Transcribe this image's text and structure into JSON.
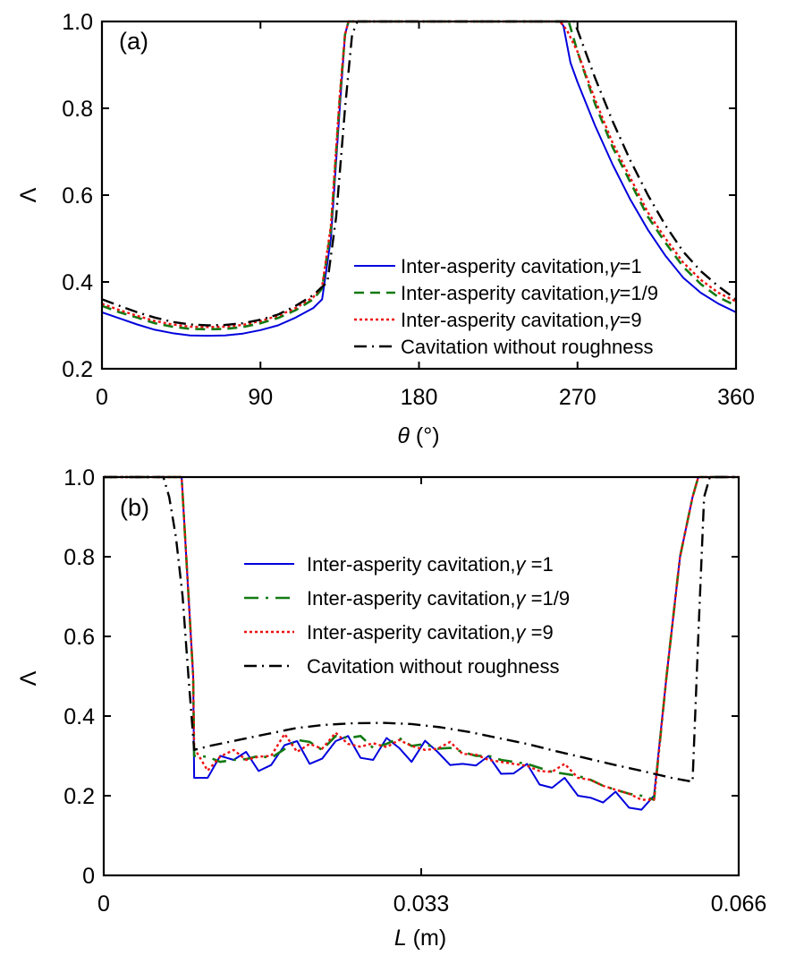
{
  "chart_data": [
    {
      "type": "line",
      "panel_label": "(a)",
      "xlabel_symbol": "θ",
      "xlabel_unit": " (°)",
      "ylabel": "Λ",
      "xlim": [
        0,
        360
      ],
      "ylim": [
        0.2,
        1.0
      ],
      "xticks": [
        0,
        90,
        180,
        270,
        360
      ],
      "xtick_labels": [
        "0",
        "90",
        "180",
        "270",
        "360"
      ],
      "yticks": [
        0.2,
        0.4,
        0.6,
        0.8,
        1.0
      ],
      "ytick_labels": [
        "0.2",
        "0.4",
        "0.6",
        "0.8",
        "1.0"
      ],
      "grid": false,
      "legend_position": "lower-right",
      "series": [
        {
          "name": "Inter-asperity cavitation, γ=1",
          "legend_prefix": "Inter-asperity cavitation,",
          "legend_gamma": "γ",
          "legend_suffix": "=1",
          "color": "#0000dd",
          "style": "solid",
          "x": [
            0,
            10,
            20,
            30,
            40,
            50,
            60,
            70,
            80,
            90,
            100,
            110,
            120,
            125,
            130,
            135,
            138,
            140,
            150,
            180,
            220,
            260,
            262,
            266,
            270,
            280,
            290,
            300,
            310,
            320,
            330,
            340,
            350,
            360
          ],
          "y": [
            0.33,
            0.316,
            0.302,
            0.29,
            0.282,
            0.277,
            0.276,
            0.277,
            0.281,
            0.289,
            0.3,
            0.318,
            0.34,
            0.36,
            0.5,
            0.8,
            0.97,
            1.0,
            1.0,
            1.0,
            1.0,
            1.0,
            0.99,
            0.905,
            0.86,
            0.76,
            0.67,
            0.59,
            0.52,
            0.46,
            0.41,
            0.375,
            0.35,
            0.33
          ]
        },
        {
          "name": "Inter-asperity cavitation, γ=1/9",
          "legend_prefix": "Inter-asperity cavitation,",
          "legend_gamma": "γ",
          "legend_suffix": "=1/9",
          "color": "#137a13",
          "style": "dashed",
          "x": [
            0,
            10,
            20,
            30,
            40,
            50,
            60,
            70,
            80,
            90,
            100,
            110,
            120,
            125,
            130,
            135,
            138,
            140,
            150,
            180,
            220,
            260,
            265,
            270,
            280,
            290,
            300,
            310,
            320,
            330,
            340,
            350,
            360
          ],
          "y": [
            0.345,
            0.33,
            0.318,
            0.305,
            0.297,
            0.292,
            0.291,
            0.292,
            0.296,
            0.305,
            0.317,
            0.335,
            0.36,
            0.385,
            0.52,
            0.82,
            0.97,
            1.0,
            1.0,
            1.0,
            1.0,
            1.0,
            1.0,
            0.93,
            0.81,
            0.71,
            0.63,
            0.55,
            0.49,
            0.435,
            0.395,
            0.365,
            0.345
          ]
        },
        {
          "name": "Inter-asperity cavitation, γ=9",
          "legend_prefix": "Inter-asperity cavitation,",
          "legend_gamma": "γ",
          "legend_suffix": "=9",
          "color": "#ee1111",
          "style": "dotted",
          "x": [
            0,
            10,
            20,
            30,
            40,
            50,
            60,
            70,
            80,
            90,
            100,
            110,
            120,
            125,
            130,
            135,
            138,
            140,
            150,
            180,
            220,
            260,
            264,
            270,
            280,
            290,
            300,
            310,
            320,
            330,
            340,
            350,
            360
          ],
          "y": [
            0.35,
            0.335,
            0.322,
            0.31,
            0.302,
            0.297,
            0.296,
            0.297,
            0.301,
            0.31,
            0.322,
            0.34,
            0.365,
            0.39,
            0.53,
            0.83,
            0.97,
            1.0,
            1.0,
            1.0,
            1.0,
            1.0,
            0.98,
            0.93,
            0.82,
            0.72,
            0.64,
            0.56,
            0.5,
            0.445,
            0.405,
            0.375,
            0.355
          ]
        },
        {
          "name": "Cavitation without roughness",
          "legend_prefix": "Cavitation without roughness",
          "legend_gamma": "",
          "legend_suffix": "",
          "color": "#000000",
          "style": "dashdot",
          "x": [
            0,
            10,
            20,
            30,
            40,
            50,
            60,
            70,
            80,
            90,
            100,
            110,
            120,
            128,
            133,
            138,
            142,
            145,
            150,
            180,
            220,
            260,
            268,
            270,
            280,
            290,
            300,
            310,
            320,
            330,
            340,
            350,
            360
          ],
          "y": [
            0.36,
            0.345,
            0.33,
            0.318,
            0.308,
            0.302,
            0.3,
            0.301,
            0.305,
            0.313,
            0.325,
            0.345,
            0.37,
            0.4,
            0.55,
            0.8,
            0.97,
            1.0,
            1.0,
            1.0,
            1.0,
            1.0,
            1.0,
            0.98,
            0.87,
            0.77,
            0.68,
            0.6,
            0.53,
            0.47,
            0.425,
            0.39,
            0.36
          ]
        }
      ]
    },
    {
      "type": "line",
      "panel_label": "(b)",
      "xlabel_symbol": "L",
      "xlabel_unit": " (m)",
      "ylabel": "Λ",
      "xlim": [
        0,
        0.066
      ],
      "ylim": [
        0,
        1.0
      ],
      "xticks": [
        0,
        0.033,
        0.066
      ],
      "xtick_labels": [
        "0",
        "0.033",
        "0.066"
      ],
      "yticks": [
        0,
        0.2,
        0.4,
        0.6,
        0.8,
        1.0
      ],
      "ytick_labels": [
        "0",
        "0.2",
        "0.4",
        "0.6",
        "0.8",
        "1.0"
      ],
      "grid": false,
      "legend_position": "upper-center",
      "series": [
        {
          "name": "Inter-asperity cavitation, γ=1",
          "legend_prefix": "Inter-asperity cavitation,",
          "legend_gamma": "γ",
          "legend_suffix": " =1",
          "color": "#0000dd",
          "style": "solid",
          "x": [
            0,
            0.0081,
            0.0093,
            0.0094,
            0.0108,
            0.0121,
            0.0135,
            0.0148,
            0.0161,
            0.0174,
            0.0188,
            0.0201,
            0.0214,
            0.0227,
            0.0241,
            0.0254,
            0.0267,
            0.028,
            0.0294,
            0.0307,
            0.032,
            0.0334,
            0.0347,
            0.036,
            0.0373,
            0.0387,
            0.04,
            0.0413,
            0.0426,
            0.044,
            0.0453,
            0.0466,
            0.0479,
            0.0493,
            0.0506,
            0.0519,
            0.0532,
            0.0546,
            0.0559,
            0.0572,
            0.0585,
            0.0599,
            0.0612,
            0.0618,
            0.0624,
            0.063,
            0.066
          ],
          "y": [
            1.0,
            1.0,
            0.5,
            0.245,
            0.245,
            0.3,
            0.29,
            0.31,
            0.262,
            0.277,
            0.327,
            0.337,
            0.28,
            0.293,
            0.337,
            0.35,
            0.295,
            0.29,
            0.345,
            0.32,
            0.285,
            0.338,
            0.31,
            0.277,
            0.28,
            0.276,
            0.3,
            0.255,
            0.256,
            0.28,
            0.228,
            0.22,
            0.245,
            0.2,
            0.195,
            0.183,
            0.21,
            0.17,
            0.165,
            0.2,
            0.5,
            0.8,
            0.95,
            1.0,
            1.0,
            1.0,
            1.0
          ]
        },
        {
          "name": "Inter-asperity cavitation, γ=1/9",
          "legend_prefix": "Inter-asperity cavitation,",
          "legend_gamma": "γ",
          "legend_suffix": " =1/9",
          "color": "#137a13",
          "style": "longdash",
          "x": [
            0,
            0.0081,
            0.0093,
            0.0094,
            0.0108,
            0.0121,
            0.0135,
            0.0148,
            0.0161,
            0.0174,
            0.0188,
            0.0201,
            0.0214,
            0.0227,
            0.0241,
            0.0254,
            0.0267,
            0.028,
            0.0294,
            0.0307,
            0.032,
            0.0334,
            0.0347,
            0.036,
            0.0373,
            0.0387,
            0.04,
            0.0413,
            0.0426,
            0.044,
            0.0453,
            0.0466,
            0.0479,
            0.0493,
            0.0506,
            0.0519,
            0.0532,
            0.0546,
            0.0559,
            0.0572,
            0.0585,
            0.0599,
            0.0612,
            0.0618,
            0.0624,
            0.063,
            0.066
          ],
          "y": [
            1.0,
            1.0,
            0.5,
            0.3,
            0.298,
            0.285,
            0.29,
            0.292,
            0.3,
            0.295,
            0.317,
            0.34,
            0.335,
            0.315,
            0.35,
            0.345,
            0.35,
            0.32,
            0.33,
            0.345,
            0.325,
            0.33,
            0.318,
            0.32,
            0.31,
            0.3,
            0.3,
            0.29,
            0.285,
            0.28,
            0.27,
            0.26,
            0.255,
            0.25,
            0.24,
            0.225,
            0.215,
            0.205,
            0.2,
            0.19,
            0.5,
            0.8,
            0.95,
            1.0,
            1.0,
            1.0,
            1.0
          ]
        },
        {
          "name": "Inter-asperity cavitation, γ=9",
          "legend_prefix": "Inter-asperity cavitation,",
          "legend_gamma": "γ",
          "legend_suffix": " =9",
          "color": "#ee1111",
          "style": "dotted",
          "x": [
            0,
            0.0081,
            0.0093,
            0.0094,
            0.0108,
            0.0121,
            0.0135,
            0.0148,
            0.0161,
            0.0174,
            0.0188,
            0.0201,
            0.0214,
            0.0227,
            0.0241,
            0.0254,
            0.0267,
            0.028,
            0.0294,
            0.0307,
            0.032,
            0.0334,
            0.0347,
            0.036,
            0.0373,
            0.0387,
            0.04,
            0.0413,
            0.0426,
            0.044,
            0.0453,
            0.0466,
            0.0479,
            0.0493,
            0.0506,
            0.0519,
            0.0532,
            0.0546,
            0.0559,
            0.0572,
            0.0585,
            0.0599,
            0.0612,
            0.0618,
            0.0624,
            0.063,
            0.066
          ],
          "y": [
            1.0,
            1.0,
            0.5,
            0.32,
            0.263,
            0.298,
            0.315,
            0.29,
            0.298,
            0.3,
            0.355,
            0.31,
            0.33,
            0.318,
            0.358,
            0.33,
            0.323,
            0.332,
            0.322,
            0.34,
            0.325,
            0.315,
            0.318,
            0.335,
            0.305,
            0.303,
            0.29,
            0.285,
            0.28,
            0.275,
            0.262,
            0.26,
            0.28,
            0.245,
            0.24,
            0.225,
            0.215,
            0.205,
            0.19,
            0.19,
            0.5,
            0.8,
            0.95,
            1.0,
            1.0,
            1.0,
            1.0
          ]
        },
        {
          "name": "Cavitation without roughness",
          "legend_prefix": "Cavitation without roughness",
          "legend_gamma": "",
          "legend_suffix": "",
          "color": "#000000",
          "style": "dashdot",
          "x": [
            0,
            0.0062,
            0.0068,
            0.0075,
            0.0082,
            0.0088,
            0.0094,
            0.011,
            0.014,
            0.017,
            0.02,
            0.023,
            0.026,
            0.029,
            0.032,
            0.035,
            0.038,
            0.041,
            0.044,
            0.047,
            0.05,
            0.053,
            0.056,
            0.059,
            0.0612,
            0.0618,
            0.0624,
            0.063,
            0.066
          ],
          "y": [
            1.0,
            1.0,
            0.95,
            0.85,
            0.7,
            0.5,
            0.315,
            0.325,
            0.34,
            0.355,
            0.37,
            0.378,
            0.382,
            0.383,
            0.38,
            0.372,
            0.36,
            0.345,
            0.33,
            0.312,
            0.295,
            0.278,
            0.262,
            0.245,
            0.235,
            0.6,
            0.95,
            1.0,
            1.0
          ]
        }
      ]
    }
  ]
}
